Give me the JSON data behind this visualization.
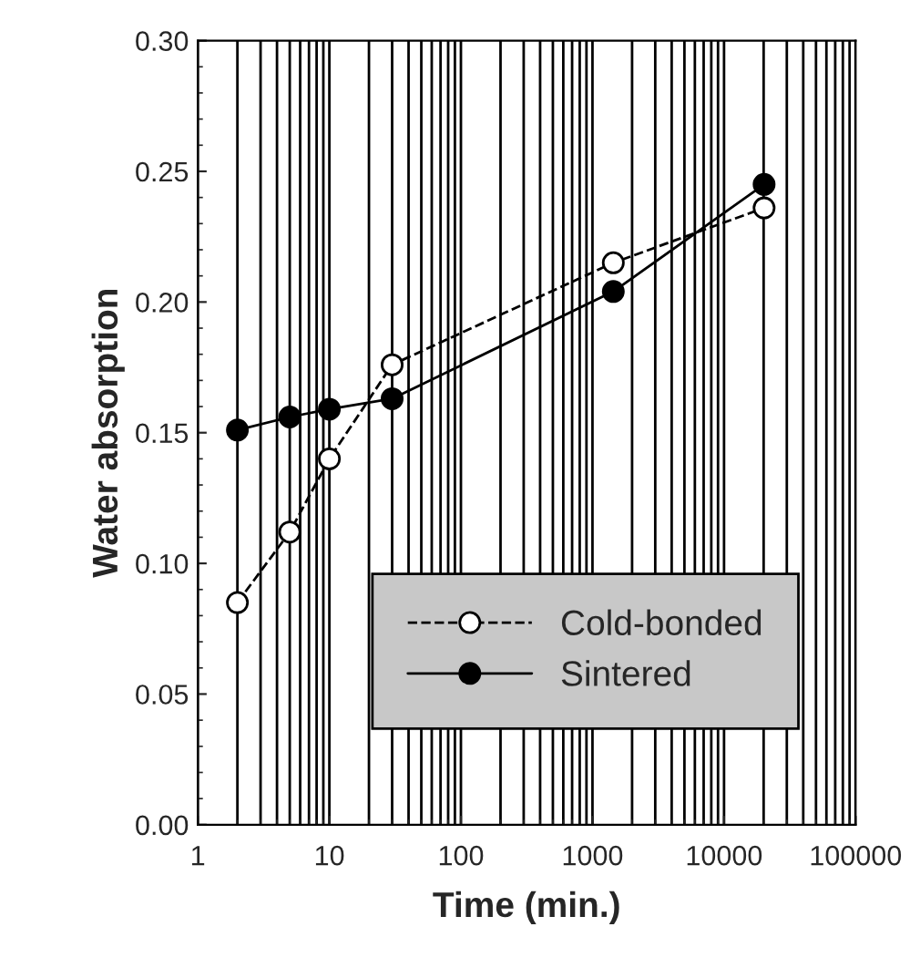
{
  "chart_data": {
    "type": "line",
    "xlabel": "Time (min.)",
    "ylabel": "Water absorption",
    "x": [
      2,
      5,
      10,
      30,
      1440,
      20160
    ],
    "series": [
      {
        "name": "Cold-bonded",
        "color": "#000000",
        "values": [
          0.085,
          0.112,
          0.14,
          0.176,
          0.215,
          0.236
        ],
        "line_style": "dashed",
        "marker": "circle"
      },
      {
        "name": "Sintered",
        "color": "#000000",
        "values": [
          0.151,
          0.156,
          0.159,
          0.163,
          0.204,
          0.245
        ],
        "line_style": "solid",
        "marker": "circle"
      }
    ],
    "log": "x",
    "xlim": [
      1,
      100000
    ],
    "xticks": [
      1,
      10,
      100,
      1000,
      10000,
      100000
    ],
    "ylim": [
      0,
      0.3
    ],
    "yticks": [
      {
        "value": 0,
        "label": "0.00"
      },
      {
        "value": 0.05,
        "label": "0.05"
      },
      {
        "value": 0.1,
        "label": "0.10"
      },
      {
        "value": 0.15,
        "label": "0.15"
      },
      {
        "value": 0.2,
        "label": "0.20"
      },
      {
        "value": 0.25,
        "label": "0.25"
      },
      {
        "value": 0.3,
        "label": "0.30"
      }
    ],
    "grid": "x",
    "legend": "bottom right"
  }
}
